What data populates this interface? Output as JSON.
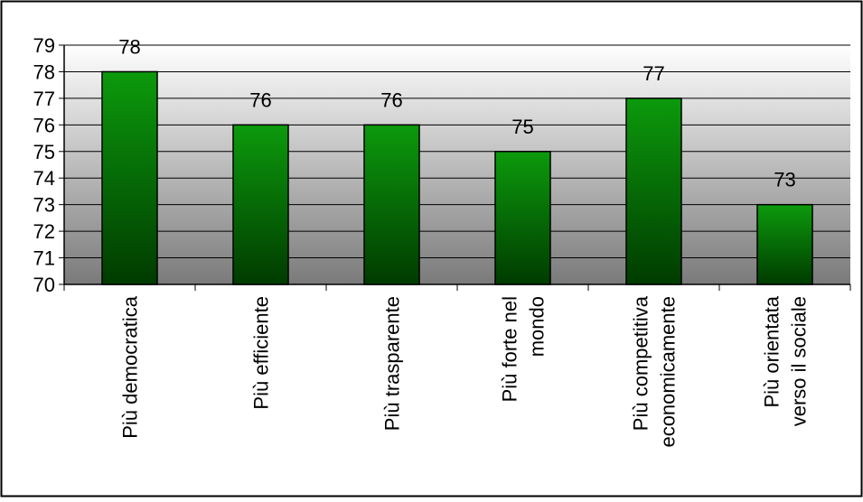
{
  "chart_data": {
    "type": "bar",
    "categories": [
      [
        "Più democratica"
      ],
      [
        "Più efficiente"
      ],
      [
        "Più trasparente"
      ],
      [
        "Più forte nel",
        "mondo"
      ],
      [
        "Più competitiva",
        "economicamente"
      ],
      [
        "Più orientata",
        "verso il sociale"
      ]
    ],
    "values": [
      78,
      76,
      76,
      75,
      77,
      73
    ],
    "data_labels": [
      "78",
      "76",
      "76",
      "75",
      "77",
      "73"
    ],
    "ylim": [
      70,
      79
    ],
    "yticks": [
      "70",
      "71",
      "72",
      "73",
      "74",
      "75",
      "76",
      "77",
      "78",
      "79"
    ],
    "title": "",
    "xlabel": "",
    "ylabel": "",
    "grid": true,
    "legend": "none",
    "colors": {
      "bar_light": "#0c9a0c",
      "bar_dark": "#003b00",
      "plot_top": "#ffffff",
      "plot_bottom": "#7a7a7a"
    }
  }
}
